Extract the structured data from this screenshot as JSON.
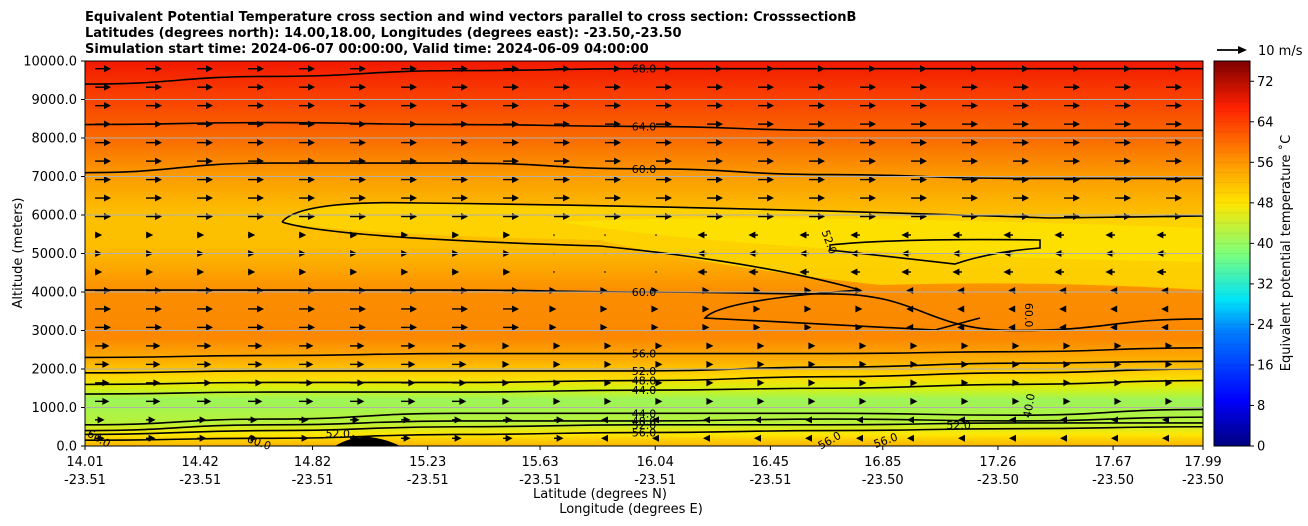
{
  "chart_data": {
    "type": "filled-contour cross section with wind vectors",
    "title_lines": [
      "Equivalent Potential Temperature cross section and wind vectors parallel to cross section: CrosssectionB",
      "Latitudes (degrees north): 14.00,18.00, Longitudes (degrees east): -23.50,-23.50",
      "Simulation start time: 2024-06-07 00:00:00, Valid time: 2024-06-09 04:00:00"
    ],
    "ylabel": "Altitude (meters)",
    "xlabel_lat": "Latitude (degrees N)",
    "xlabel_lon": "Longitude (degrees E)",
    "ylim": [
      0,
      10000
    ],
    "yticks": [
      "0.0",
      "1000.0",
      "2000.0",
      "3000.0",
      "4000.0",
      "5000.0",
      "6000.0",
      "7000.0",
      "8000.0",
      "9000.0",
      "10000.0"
    ],
    "xlim_lat": [
      14.01,
      17.99
    ],
    "xticks": [
      {
        "lat": "14.01",
        "lon": "-23.51"
      },
      {
        "lat": "14.42",
        "lon": "-23.51"
      },
      {
        "lat": "14.82",
        "lon": "-23.51"
      },
      {
        "lat": "15.23",
        "lon": "-23.51"
      },
      {
        "lat": "15.63",
        "lon": "-23.51"
      },
      {
        "lat": "16.04",
        "lon": "-23.51"
      },
      {
        "lat": "16.45",
        "lon": "-23.51"
      },
      {
        "lat": "16.85",
        "lon": "-23.50"
      },
      {
        "lat": "17.26",
        "lon": "-23.50"
      },
      {
        "lat": "17.67",
        "lon": "-23.50"
      },
      {
        "lat": "17.99",
        "lon": "-23.50"
      }
    ],
    "horizontal_gridlines": true,
    "colorbar": {
      "label": "Equivalent potential temperature ˚C",
      "range": [
        0,
        76
      ],
      "ticks": [
        "0",
        "8",
        "16",
        "24",
        "32",
        "40",
        "48",
        "56",
        "64",
        "72"
      ]
    },
    "quiver_key": {
      "label": "10 m/s"
    },
    "contours": [
      {
        "level": 68,
        "label": "68.0",
        "altitudes_m": [
          9400,
          9600,
          9750,
          9800,
          9800,
          9800,
          9800
        ]
      },
      {
        "level": 64,
        "label": "64.0",
        "altitudes_m": [
          8350,
          8400,
          8350,
          8300,
          8200,
          8200,
          8200
        ]
      },
      {
        "level": 60,
        "label": "60.0",
        "altitudes_m": [
          7100,
          7350,
          7350,
          7200,
          7050,
          6950,
          6950
        ]
      },
      {
        "level": 60,
        "label": "60.0",
        "altitudes_m": [
          4050,
          4050,
          4050,
          4000,
          3950,
          3000,
          3300
        ]
      },
      {
        "level": 56,
        "label": "56.0",
        "altitudes_m": [
          2300,
          2350,
          2400,
          2400,
          2400,
          2450,
          2550
        ]
      },
      {
        "level": 52,
        "label": "52.0",
        "altitudes_m": [
          1900,
          1950,
          1950,
          1950,
          2050,
          2150,
          2200
        ]
      },
      {
        "level": 48,
        "label": "48.0",
        "altitudes_m": [
          1600,
          1650,
          1650,
          1700,
          1800,
          1900,
          2000
        ]
      },
      {
        "level": 44,
        "label": "44.0",
        "altitudes_m": [
          1350,
          1400,
          1400,
          1450,
          1500,
          1600,
          1700
        ]
      },
      {
        "level": 44,
        "label": "44.0",
        "altitudes_m": [
          550,
          700,
          850,
          850,
          850,
          800,
          950
        ]
      },
      {
        "level": 48,
        "label": "48.0",
        "altitudes_m": [
          400,
          550,
          650,
          650,
          700,
          650,
          750
        ]
      },
      {
        "level": 52,
        "label": "52.0",
        "altitudes_m": [
          300,
          400,
          500,
          550,
          550,
          600,
          600
        ]
      },
      {
        "level": 56,
        "label": "56.0",
        "altitudes_m": [
          150,
          200,
          300,
          350,
          400,
          450,
          500
        ]
      }
    ],
    "inline_labels": [
      "60.0",
      "60.0",
      "52.0",
      "52.0",
      "56.0",
      "56.0",
      "52.0",
      "60.0",
      "40.0"
    ],
    "wind_regime": "westerly (eastward) winds above ~5500 m and below ~4000 m; easterly (westward) winds between ~4200 and ~5500 m east of 16.3N; near-calm mid-level region"
  }
}
